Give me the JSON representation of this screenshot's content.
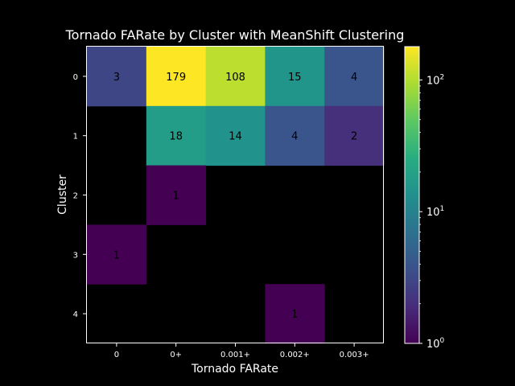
{
  "chart_data": {
    "type": "heatmap",
    "title": "Tornado FARate by Cluster with MeanShift Clustering",
    "xlabel": "Tornado FARate",
    "ylabel": "Cluster",
    "x_categories": [
      "0",
      "0+",
      "0.001+",
      "0.002+",
      "0.003+"
    ],
    "y_categories": [
      "0",
      "1",
      "2",
      "3",
      "4"
    ],
    "values": [
      [
        3,
        179,
        108,
        15,
        4
      ],
      [
        null,
        18,
        14,
        4,
        2
      ],
      [
        null,
        1,
        null,
        null,
        null
      ],
      [
        1,
        null,
        null,
        null,
        null
      ],
      [
        null,
        null,
        null,
        1,
        null
      ]
    ],
    "colorbar": {
      "scale": "log",
      "range": [
        1,
        179
      ],
      "ticks": [
        {
          "value": 1,
          "base": "10",
          "exp": "0"
        },
        {
          "value": 10,
          "base": "10",
          "exp": "1"
        },
        {
          "value": 100,
          "base": "10",
          "exp": "2"
        }
      ]
    },
    "colormap": "viridis",
    "empty_cell_color": "#000000",
    "background_color": "#000000",
    "text_color": "#ffffff",
    "annotation_color": "#000000"
  }
}
